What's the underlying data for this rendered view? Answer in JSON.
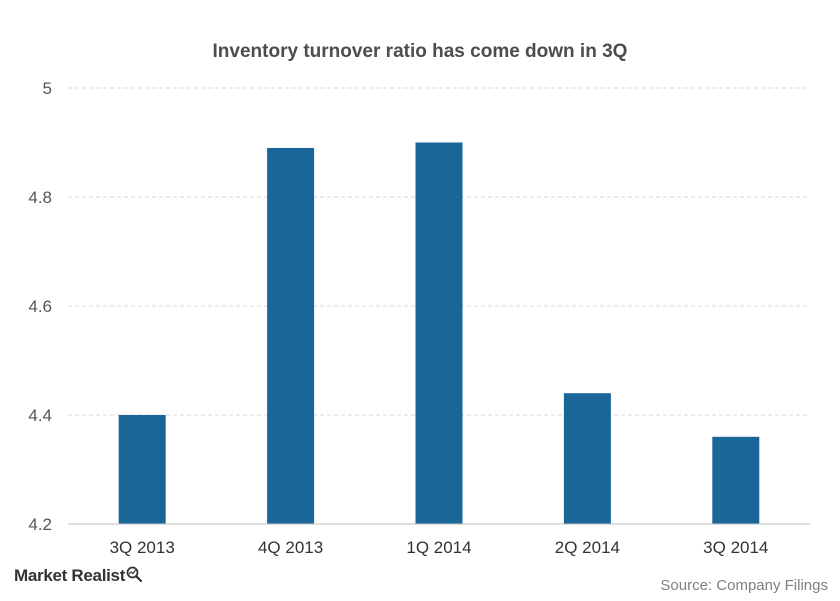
{
  "chart_data": {
    "type": "bar",
    "title": "Inventory turnover ratio has come down in 3Q",
    "categories": [
      "3Q 2013",
      "4Q 2013",
      "1Q 2014",
      "2Q 2014",
      "3Q 2014"
    ],
    "values": [
      4.4,
      4.89,
      4.9,
      4.44,
      4.36
    ],
    "ylim": [
      4.2,
      5.0
    ],
    "yticks": [
      4.2,
      4.4,
      4.6,
      4.8,
      5.0
    ],
    "ytick_labels": [
      "4.2",
      "4.4",
      "4.6",
      "4.8",
      "5"
    ],
    "xlabel": "",
    "ylabel": "",
    "grid": true,
    "bar_color": "#1a6699"
  },
  "branding": {
    "logo_text": "Market Realist",
    "logo_icon": "magnifier-chart-icon"
  },
  "source": "Source: Company Filings"
}
